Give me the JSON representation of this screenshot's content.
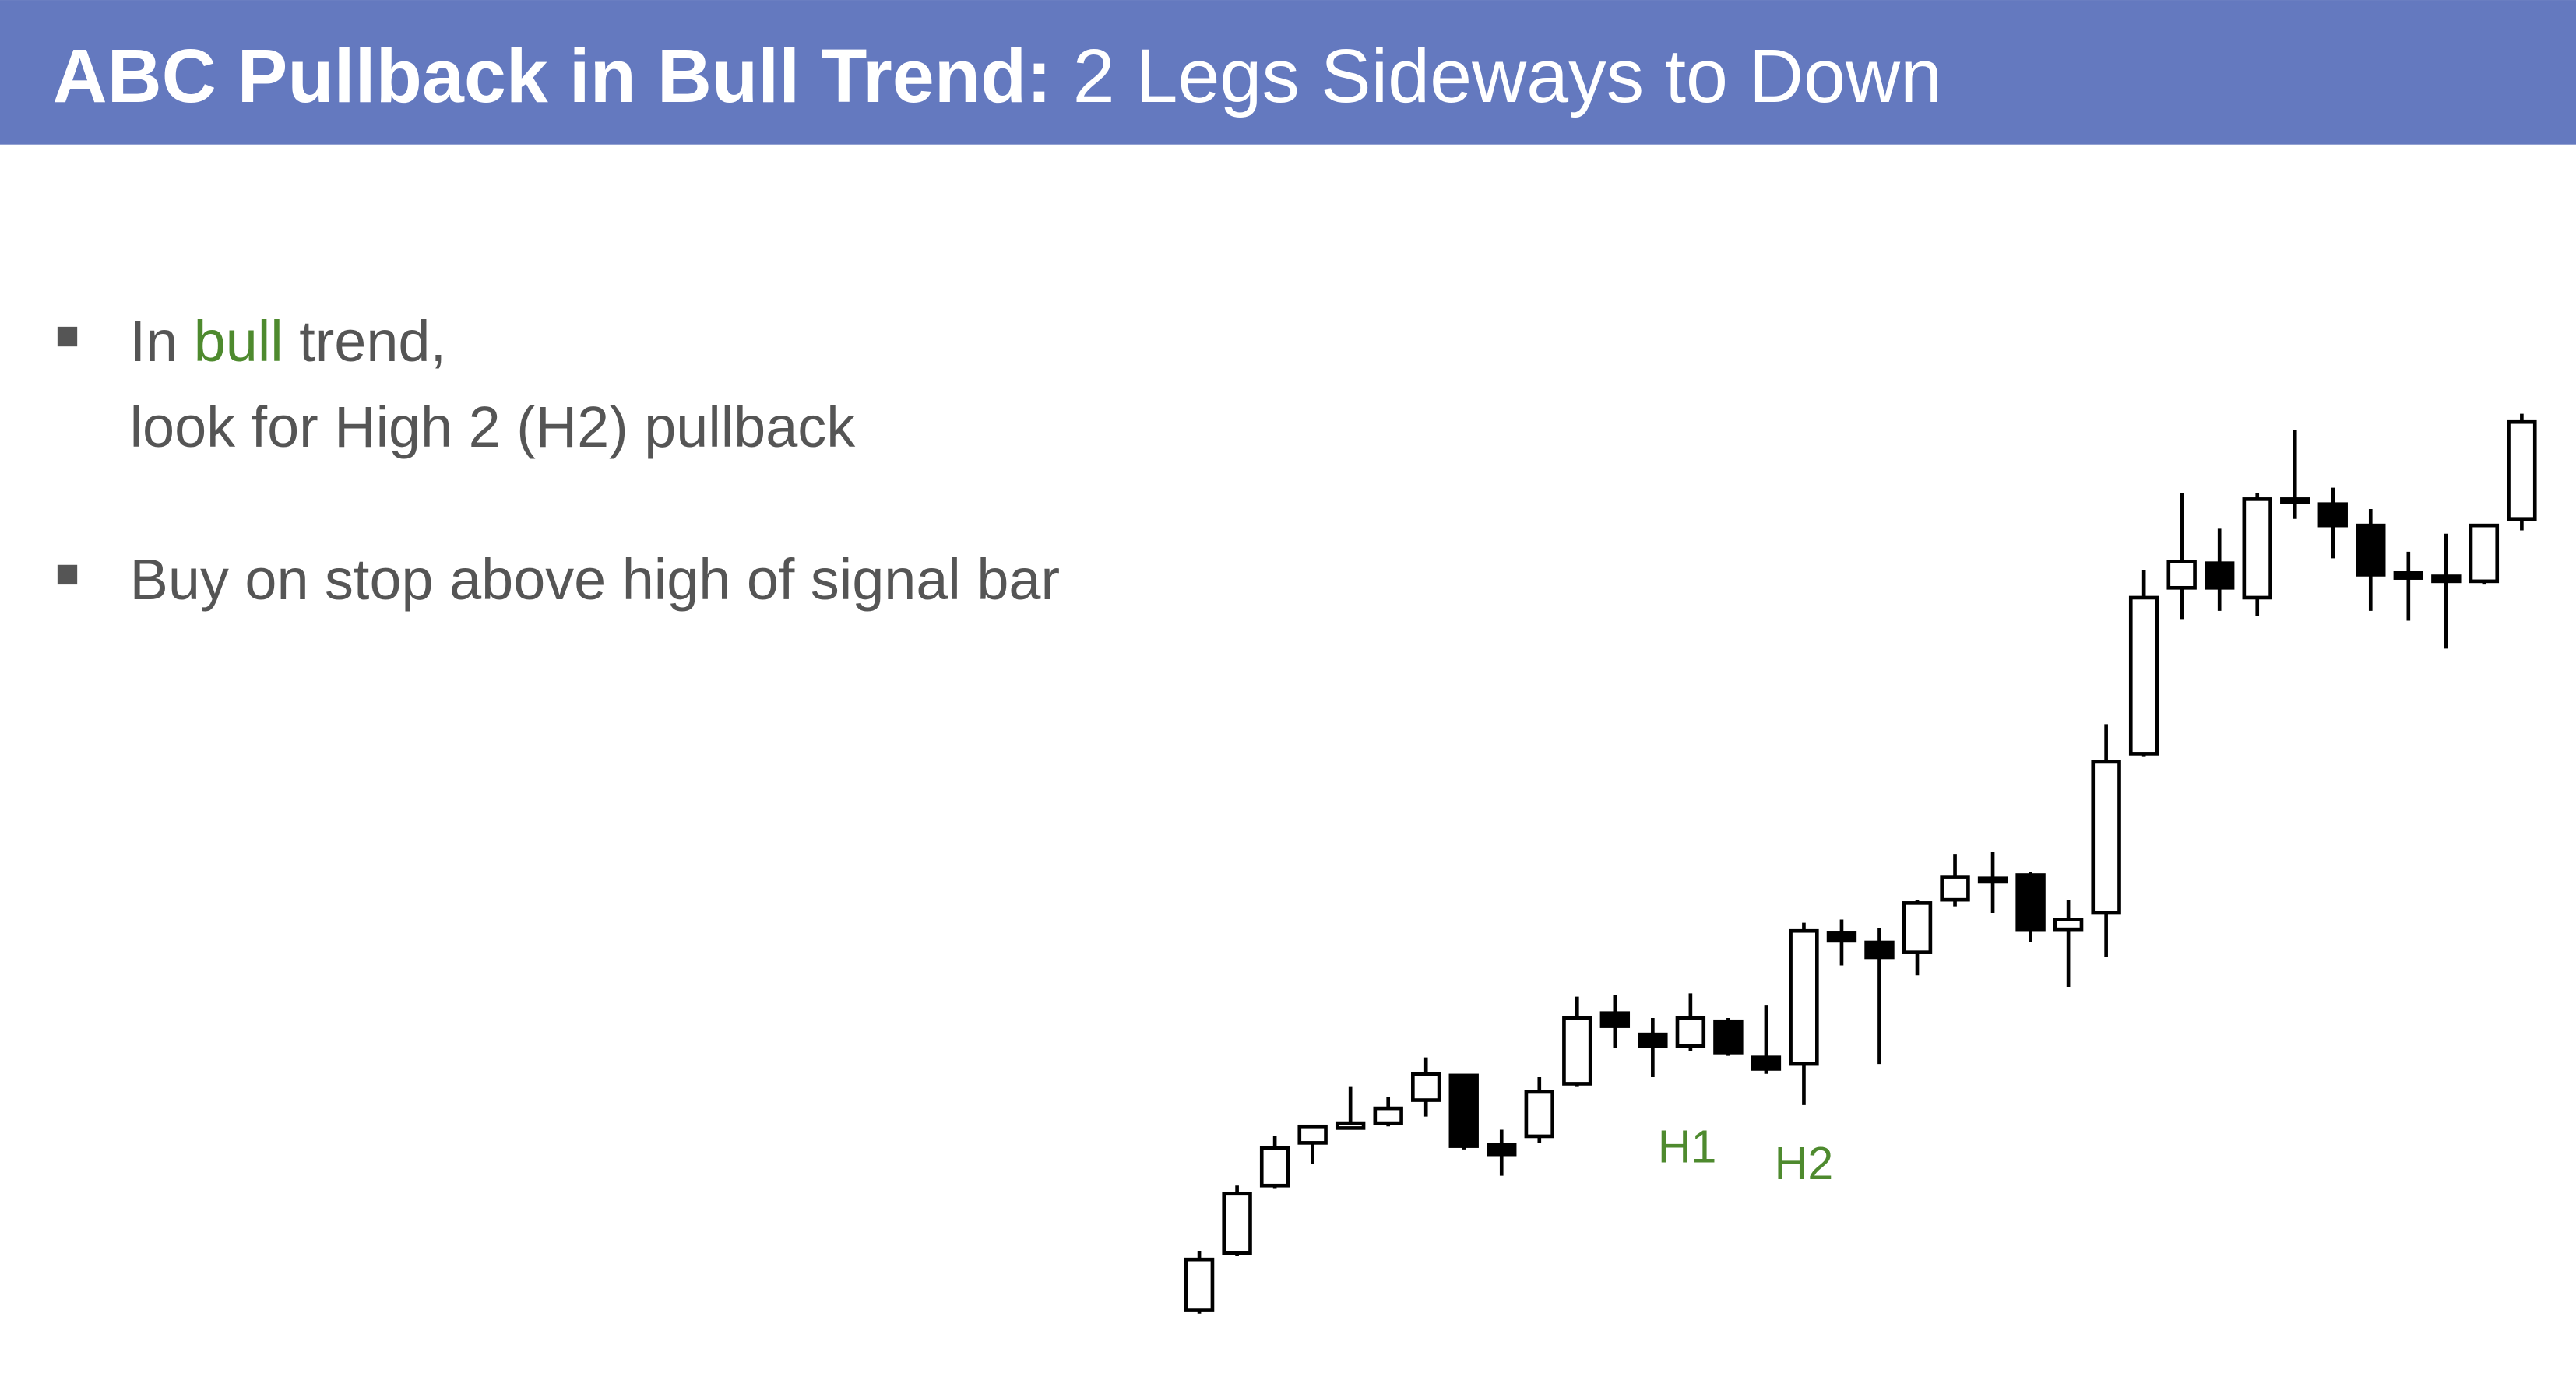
{
  "header": {
    "title_bold": "ABC Pullback in Bull Trend:",
    "title_rest": "2 Legs Sideways to Down"
  },
  "bullets": [
    {
      "lines": [
        [
          "In",
          "bull",
          "trend,"
        ],
        [
          "look for High 2 (H2) pullback"
        ]
      ]
    },
    {
      "lines": [
        [
          "Buy on stop above high of signal bar"
        ]
      ]
    }
  ],
  "chart_labels": [
    "H1",
    "H2"
  ]
}
